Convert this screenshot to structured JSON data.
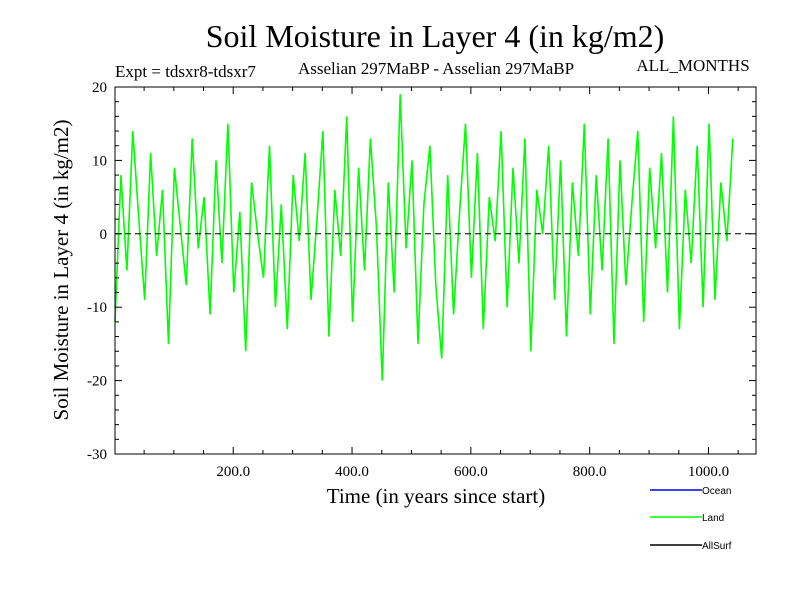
{
  "chart_data": {
    "type": "line",
    "title": "Soil Moisture in Layer 4 (in kg/m2)",
    "subtitle_left": "Expt = tdsxr8-tdsxr7",
    "subtitle_mid": "Asselian 297MaBP - Asselian 297MaBP",
    "subtitle_right": "ALL_MONTHS",
    "xlabel": "Time (in years since start)",
    "ylabel": "Soil Moisture in Layer 4 (in kg/m2)",
    "xlim": [
      1,
      1080
    ],
    "ylim": [
      -30,
      20
    ],
    "x_ticks": [
      {
        "value": 200,
        "label": "200.0"
      },
      {
        "value": 400,
        "label": "400.0"
      },
      {
        "value": 600,
        "label": "600.0"
      },
      {
        "value": 800,
        "label": "800.0"
      },
      {
        "value": 1000,
        "label": "1000.0"
      }
    ],
    "y_ticks": [
      {
        "value": 20,
        "label": "20"
      },
      {
        "value": 10,
        "label": "10"
      },
      {
        "value": 0,
        "label": "0"
      },
      {
        "value": -10,
        "label": "-10"
      },
      {
        "value": -20,
        "label": "-20"
      },
      {
        "value": -30,
        "label": "-30"
      }
    ],
    "zero_line": true,
    "legend_position": "bottom-right",
    "series": [
      {
        "name": "Ocean",
        "color": "#0000ff",
        "values": []
      },
      {
        "name": "Land",
        "color": "#00ff00",
        "x_start": 1,
        "x_step": 10,
        "values": [
          -12,
          8,
          -5,
          14,
          2,
          -9,
          11,
          -3,
          6,
          -15,
          9,
          1,
          -7,
          13,
          -2,
          5,
          -11,
          10,
          -4,
          15,
          -8,
          3,
          -16,
          7,
          0,
          -6,
          12,
          -10,
          4,
          -13,
          8,
          -1,
          11,
          -9,
          2,
          14,
          -14,
          6,
          -3,
          16,
          -12,
          9,
          -5,
          13,
          1,
          -20,
          7,
          -8,
          19,
          -2,
          10,
          -15,
          4,
          12,
          -7,
          -17,
          8,
          -11,
          3,
          15,
          -6,
          11,
          -13,
          5,
          -1,
          14,
          -10,
          9,
          -4,
          13,
          -16,
          6,
          0,
          12,
          -9,
          10,
          -14,
          7,
          -3,
          15,
          -11,
          8,
          -5,
          13,
          -15,
          10,
          -7,
          4,
          14,
          -12,
          9,
          -2,
          11,
          -8,
          16,
          -13,
          6,
          -4,
          12,
          -10,
          15,
          -9,
          7,
          -1,
          13
        ]
      },
      {
        "name": "AllSurf",
        "color": "#000000",
        "values": []
      }
    ]
  }
}
